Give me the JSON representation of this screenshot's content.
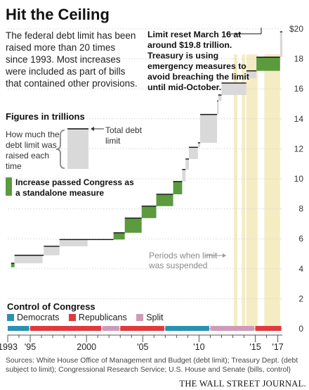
{
  "title": "Hit the Ceiling",
  "subtitle": "The federal debt limit has been raised more than 20 times since 1993. Most increases were included as part of bills that contained other provisions.",
  "note": "Limit reset March 16 at around $19.8 trillion. Treasury is using emergency measures to avoid breaching the limit until mid-October.",
  "units_label": "Figures in trillions",
  "legend": {
    "raised_label": "How much the debt limit was raised each time",
    "total_label": "Total debt limit",
    "standalone_label": "Increase passed Congress as a standalone measure",
    "suspended_label": "Periods when limit was suspended"
  },
  "control": {
    "title": "Control of Congress",
    "items": [
      {
        "label": "Democrats",
        "color": "#2a91b3"
      },
      {
        "label": "Republicans",
        "color": "#e03a3e"
      },
      {
        "label": "Split",
        "color": "#cf9ab8"
      }
    ]
  },
  "sources": "Sources: White House Office of Management and Budget (debt limit); Treasury Dept. (debt subject to limit); Congressional Research Service; U.S. House and Senate (bills, control)",
  "credit": "THE WALL STREET JOURNAL.",
  "colors": {
    "standalone": "#5b9a3d",
    "raise": "#d9d9d9",
    "suspension": "#f5ecc4",
    "limit_line": "#111111"
  },
  "chart_data": {
    "type": "step",
    "ylim": [
      0,
      20
    ],
    "y_ticks": [
      0,
      2,
      4,
      6,
      8,
      10,
      12,
      14,
      16,
      18,
      20
    ],
    "y_tick_labels": [
      "0",
      "2",
      "4",
      "6",
      "8",
      "10",
      "12",
      "14",
      "16",
      "18",
      "$20"
    ],
    "xlim": [
      1993,
      2017.4
    ],
    "x_ticks": [
      1993,
      1995,
      2000,
      2005,
      2010,
      2015,
      2017
    ],
    "x_tick_labels": [
      "1993",
      "'95",
      "2000",
      "'05",
      "'10",
      "'15",
      "'17"
    ],
    "steps": [
      {
        "date": 1993.3,
        "from": 4.1,
        "to": 4.37,
        "standalone": true
      },
      {
        "date": 1993.6,
        "from": 4.37,
        "to": 4.9,
        "standalone": false
      },
      {
        "date": 1996.2,
        "from": 4.9,
        "to": 5.5,
        "standalone": false
      },
      {
        "date": 1997.6,
        "from": 5.5,
        "to": 5.95,
        "standalone": false
      },
      {
        "date": 2002.4,
        "from": 5.95,
        "to": 6.4,
        "standalone": true
      },
      {
        "date": 2003.4,
        "from": 6.4,
        "to": 7.38,
        "standalone": true
      },
      {
        "date": 2004.9,
        "from": 7.38,
        "to": 8.18,
        "standalone": true
      },
      {
        "date": 2006.2,
        "from": 8.18,
        "to": 8.97,
        "standalone": true
      },
      {
        "date": 2007.7,
        "from": 8.97,
        "to": 9.82,
        "standalone": true
      },
      {
        "date": 2008.5,
        "from": 9.82,
        "to": 10.62,
        "standalone": false
      },
      {
        "date": 2008.8,
        "from": 10.62,
        "to": 11.32,
        "standalone": false
      },
      {
        "date": 2009.1,
        "from": 11.32,
        "to": 12.1,
        "standalone": false
      },
      {
        "date": 2009.9,
        "from": 12.1,
        "to": 12.4,
        "standalone": false
      },
      {
        "date": 2010.1,
        "from": 12.4,
        "to": 14.29,
        "standalone": false
      },
      {
        "date": 2011.6,
        "from": 14.29,
        "to": 15.19,
        "standalone": false
      },
      {
        "date": 2011.7,
        "from": 15.19,
        "to": 15.59,
        "standalone": false
      },
      {
        "date": 2012.0,
        "from": 15.59,
        "to": 16.39,
        "standalone": false
      },
      {
        "date": 2014.2,
        "from": 16.7,
        "to": 17.2,
        "standalone": false
      },
      {
        "date": 2015.1,
        "from": 17.2,
        "to": 18.11,
        "standalone": true
      },
      {
        "date": 2017.2,
        "from": 18.11,
        "to": 19.8,
        "standalone": false
      }
    ],
    "suspensions": [
      {
        "start": 2013.1,
        "end": 2013.4
      },
      {
        "start": 2013.8,
        "end": 2014.1
      },
      {
        "start": 2014.2,
        "end": 2015.2
      },
      {
        "start": 2015.8,
        "end": 2017.2
      }
    ],
    "limit_line_end": 2017.4,
    "control_periods": [
      {
        "start": 1993.0,
        "end": 1995.0,
        "party": "Democrats"
      },
      {
        "start": 1995.0,
        "end": 2001.4,
        "party": "Republicans"
      },
      {
        "start": 2001.4,
        "end": 2003.0,
        "party": "Split"
      },
      {
        "start": 2003.0,
        "end": 2007.0,
        "party": "Republicans"
      },
      {
        "start": 2007.0,
        "end": 2011.0,
        "party": "Democrats"
      },
      {
        "start": 2011.0,
        "end": 2015.0,
        "party": "Split"
      },
      {
        "start": 2015.0,
        "end": 2017.4,
        "party": "Republicans"
      }
    ]
  }
}
